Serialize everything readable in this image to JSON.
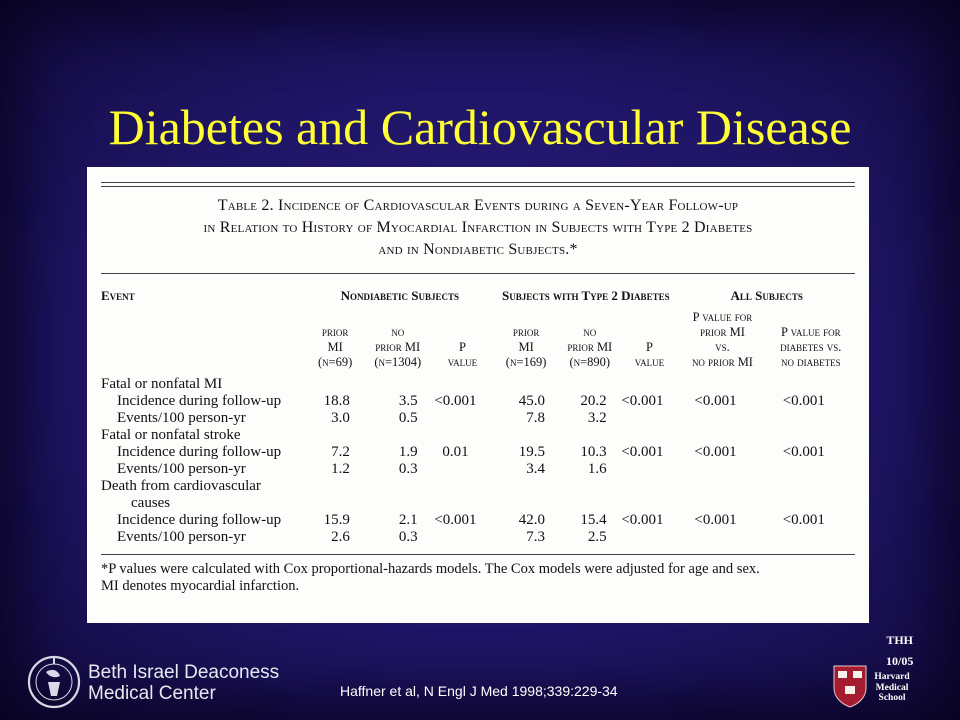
{
  "slide": {
    "title": "Diabetes and Cardiovascular Disease",
    "reference": "Haffner et al, N Engl J Med 1998;339:229-34",
    "author_initials": "THH",
    "date": "10/05",
    "institution_left": {
      "line1": "Beth Israel Deaconess",
      "line2": "Medical Center"
    },
    "institution_right": {
      "line1": "Harvard",
      "line2": "Medical",
      "line3": "School"
    }
  },
  "table": {
    "caption_line1": "Table 2. Incidence of Cardiovascular Events during a Seven-Year Follow-up",
    "caption_line2": "in Relation to History of Myocardial Infarction in Subjects with Type 2 Diabetes",
    "caption_line3": "and in Nondiabetic Subjects.*",
    "group_headers": {
      "event": "Event",
      "nondiabetic": "Nondiabetic Subjects",
      "diabetic": "Subjects with Type 2 Diabetes",
      "all": "All Subjects"
    },
    "sub_headers": {
      "nd_prior": [
        "prior",
        "MI",
        "(n=69)"
      ],
      "nd_noprior": [
        "no",
        "prior MI",
        "(n=1304)"
      ],
      "nd_p": [
        "P",
        "value"
      ],
      "d_prior": [
        "prior",
        "MI",
        "(n=169)"
      ],
      "d_noprior": [
        "no",
        "prior MI",
        "(n=890)"
      ],
      "d_p": [
        "P",
        "value"
      ],
      "all_p1": [
        "P value for",
        "prior MI",
        "vs.",
        "no prior MI"
      ],
      "all_p2": [
        "P value for",
        "diabetes vs.",
        "no diabetes"
      ]
    },
    "rows": [
      {
        "label": "Fatal or nonfatal MI",
        "indent": 0,
        "cells": [
          "",
          "",
          "",
          "",
          "",
          "",
          "",
          ""
        ]
      },
      {
        "label": "Incidence during follow-up",
        "indent": 1,
        "cells": [
          "18.8",
          "3.5",
          "<0.001",
          "45.0",
          "20.2",
          "<0.001",
          "<0.001",
          "<0.001"
        ]
      },
      {
        "label": "Events/100 person-yr",
        "indent": 1,
        "cells": [
          "3.0",
          "0.5",
          "",
          "7.8",
          "3.2",
          "",
          "",
          ""
        ]
      },
      {
        "label": "Fatal or nonfatal stroke",
        "indent": 0,
        "cells": [
          "",
          "",
          "",
          "",
          "",
          "",
          "",
          ""
        ]
      },
      {
        "label": "Incidence during follow-up",
        "indent": 1,
        "cells": [
          "7.2",
          "1.9",
          "0.01",
          "19.5",
          "10.3",
          "<0.001",
          "<0.001",
          "<0.001"
        ]
      },
      {
        "label": "Events/100 person-yr",
        "indent": 1,
        "cells": [
          "1.2",
          "0.3",
          "",
          "3.4",
          "1.6",
          "",
          "",
          ""
        ]
      },
      {
        "label": "Death from cardiovascular",
        "indent": 0,
        "cells": [
          "",
          "",
          "",
          "",
          "",
          "",
          "",
          ""
        ]
      },
      {
        "label": "causes",
        "indent": 2,
        "cells": [
          "",
          "",
          "",
          "",
          "",
          "",
          "",
          ""
        ]
      },
      {
        "label": "Incidence during follow-up",
        "indent": 1,
        "cells": [
          "15.9",
          "2.1",
          "<0.001",
          "42.0",
          "15.4",
          "<0.001",
          "<0.001",
          "<0.001"
        ]
      },
      {
        "label": "Events/100 person-yr",
        "indent": 1,
        "cells": [
          "2.6",
          "0.3",
          "",
          "7.3",
          "2.5",
          "",
          "",
          ""
        ]
      }
    ],
    "footnote_line1": "*P values were calculated with Cox proportional-hazards models. The Cox models were adjusted for age and sex.",
    "footnote_line2": "MI denotes myocardial infarction."
  },
  "colors": {
    "background": "#1f1566",
    "title": "#ffff33",
    "panel": "#fdfdfb"
  },
  "icons": {
    "left_logo": "bidmc-seal-icon",
    "right_logo": "harvard-shield-icon"
  }
}
